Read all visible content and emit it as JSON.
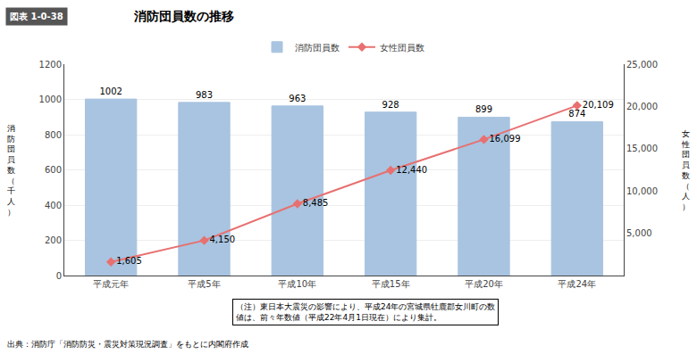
{
  "chart_data": {
    "type": "bar",
    "title": "消防団員数の推移",
    "categories": [
      "平成元年",
      "平成5年",
      "平成10年",
      "平成15年",
      "平成20年",
      "平成24年"
    ],
    "series": [
      {
        "name": "消防団員数",
        "type": "bar",
        "color": "#a8c4e0",
        "values": [
          1002,
          983,
          963,
          928,
          899,
          874
        ]
      },
      {
        "name": "女性団員数",
        "type": "line",
        "axis": "y2",
        "color": "#e87070",
        "marker": "diamond",
        "values": [
          1605,
          4150,
          8485,
          12440,
          16099,
          20109
        ],
        "value_labels": [
          "1,605",
          "4,150",
          "8,485",
          "12,440",
          "16,099",
          "20,109"
        ]
      }
    ],
    "ylabel": "消\n防\n団\n員\n数\n（\n千\n人\n）",
    "y2label": "女\n性\n団\n員\n数\n（\n人\n）",
    "ylim": [
      0,
      1200
    ],
    "yticks": [
      0,
      200,
      400,
      600,
      800,
      1000,
      1200
    ],
    "y2lim": [
      0,
      25000
    ],
    "y2ticks": [
      {
        "value": 5000,
        "label": "5,000"
      },
      {
        "value": 10000,
        "label": "10,000"
      },
      {
        "value": 15000,
        "label": "15,000"
      },
      {
        "value": 20000,
        "label": "20,000"
      },
      {
        "value": 25000,
        "label": "25,000"
      }
    ],
    "grid": true,
    "legend": "top",
    "data_labels": true,
    "annotations": [
      "図表 1-0-38",
      "（注）東日本大震災の影響により、平成24年の宮城県牡鹿郡女川町の数\n値は、前々年数値（平成22年4月1日現在）により集計。",
      "出典：消防庁「消防防災・震災対策現況調査」をもとに内閣府作成"
    ]
  }
}
